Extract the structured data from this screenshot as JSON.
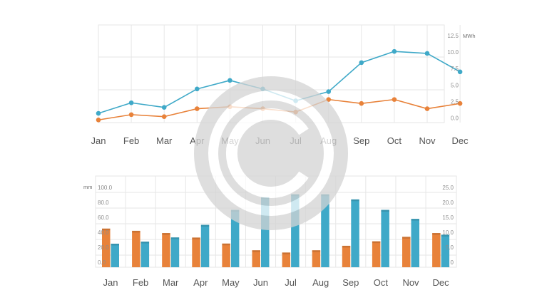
{
  "colors": {
    "blue": "#3fa9c8",
    "orange": "#e8823a",
    "grid": "#e6e6e6",
    "watermark": "#d4d4d4"
  },
  "watermark": {
    "icon": "copyright-icon"
  },
  "chart_data": [
    {
      "type": "line",
      "categories": [
        "Jan",
        "Feb",
        "Mar",
        "Apr",
        "May",
        "Jun",
        "Jul",
        "Aug",
        "Sep",
        "Oct",
        "Nov",
        "Dec"
      ],
      "y_unit": "MWh",
      "y_ticks": [
        "0.0",
        "2.5",
        "5.0",
        "7.5",
        "10.0",
        "12.5"
      ],
      "ylim": [
        0,
        12.5
      ],
      "grid": true,
      "series": [
        {
          "color": "#3fa9c8",
          "values": [
            0.7,
            2.3,
            1.6,
            4.4,
            5.7,
            4.4,
            2.6,
            4.0,
            8.4,
            10.1,
            9.8,
            7.0
          ]
        },
        {
          "color": "#e8823a",
          "values": [
            -0.3,
            0.5,
            0.2,
            1.4,
            1.7,
            1.4,
            0.9,
            2.8,
            2.2,
            2.8,
            1.4,
            2.2
          ]
        }
      ]
    },
    {
      "type": "bar",
      "categories": [
        "Jan",
        "Feb",
        "Mar",
        "Apr",
        "May",
        "Jun",
        "Jul",
        "Aug",
        "Sep",
        "Oct",
        "Nov",
        "Dec"
      ],
      "y_left_unit": "mm",
      "y_left_ticks": [
        "0.0",
        "20.0",
        "40.0",
        "60.0",
        "80.0",
        "100.0"
      ],
      "y_left_lim": [
        0,
        100
      ],
      "y_right_ticks": [
        "5.0",
        "10.0",
        "15.0",
        "20.0",
        "25.0"
      ],
      "y_right_lim": [
        0,
        25
      ],
      "grid": true,
      "series": [
        {
          "color": "#e8823a",
          "axis": "left",
          "values": [
            45,
            42,
            39,
            33,
            25,
            16,
            13,
            16,
            22,
            28,
            34,
            39
          ]
        },
        {
          "color": "#3fa9c8",
          "axis": "right",
          "values": [
            6.2,
            6.9,
            8.3,
            12.5,
            17.5,
            21.7,
            22.7,
            22.7,
            21.0,
            17.5,
            14.5,
            9.2
          ]
        }
      ]
    }
  ]
}
